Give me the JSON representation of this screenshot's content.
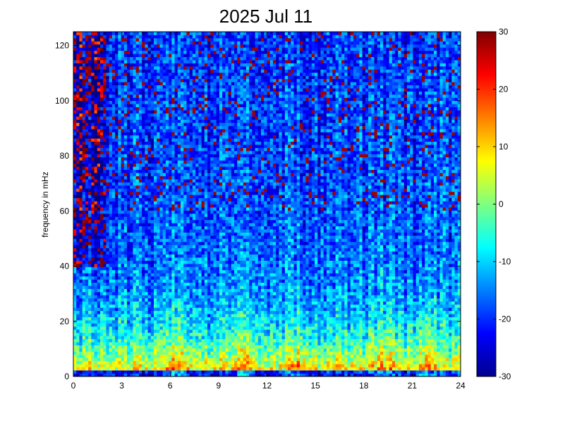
{
  "chart_data": {
    "type": "heatmap",
    "title": "2025 Jul 11",
    "xlabel": "",
    "ylabel": "frequency in mHz",
    "xlim": [
      0,
      24
    ],
    "ylim": [
      0,
      125
    ],
    "x_ticks": [
      0,
      3,
      6,
      9,
      12,
      15,
      18,
      21,
      24
    ],
    "y_ticks": [
      0,
      20,
      40,
      60,
      80,
      100,
      120
    ],
    "colorbar": {
      "colormap": "jet",
      "range": [
        -30,
        30
      ],
      "ticks": [
        -30,
        -20,
        -10,
        0,
        10,
        20,
        30
      ]
    },
    "grid": false,
    "description_values": {
      "time_hours_start": 0,
      "time_hours_end": 24,
      "dominant_low_frequency_band_mHz": [
        0,
        30
      ],
      "low_band_level_range": [
        10,
        30
      ],
      "mid_band_level_range": [
        -10,
        5
      ],
      "high_band_level_range": [
        -30,
        30
      ]
    }
  }
}
